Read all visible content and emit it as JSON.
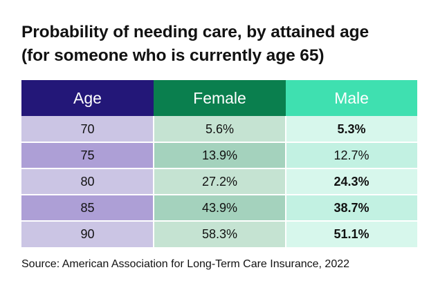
{
  "title_lines": [
    "Probability of needing care, by attained age",
    "(for someone who is currently age 65)"
  ],
  "source": "Source: American Association for Long-Term Care Insurance, 2022",
  "colors": {
    "age_header": "#231778",
    "female_header": "#0a7f4e",
    "male_header": "#3fe0b0",
    "age_light": "#cbc5e4",
    "age_dark": "#ad9fd6",
    "female_light": "#c5e3d2",
    "female_dark": "#a4d2bd",
    "male_light": "#d7f7ec",
    "male_dark": "#c2f1e2"
  },
  "chart_data": {
    "type": "table",
    "title": "Probability of needing care, by attained age (for someone who is currently age 65)",
    "columns": [
      "Age",
      "Female",
      "Male"
    ],
    "rows": [
      {
        "age": "70",
        "female": "5.6%",
        "male": "5.3%",
        "male_bold": true
      },
      {
        "age": "75",
        "female": "13.9%",
        "male": "12.7%",
        "male_bold": false
      },
      {
        "age": "80",
        "female": "27.2%",
        "male": "24.3%",
        "male_bold": true
      },
      {
        "age": "85",
        "female": "43.9%",
        "male": "38.7%",
        "male_bold": true
      },
      {
        "age": "90",
        "female": "58.3%",
        "male": "51.1%",
        "male_bold": true
      }
    ],
    "source": "Source: American Association for Long-Term Care Insurance, 2022"
  }
}
